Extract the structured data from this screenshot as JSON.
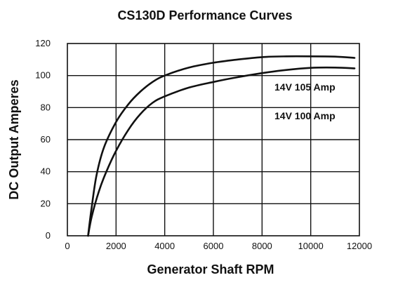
{
  "chart_data": {
    "type": "line",
    "title": "CS130D Performance Curves",
    "xlabel": "Generator Shaft RPM",
    "ylabel": "DC Output Amperes",
    "xlim": [
      0,
      12000
    ],
    "ylim": [
      0,
      120
    ],
    "xticks": [
      "0",
      "2000",
      "4000",
      "6000",
      "8000",
      "10000",
      "12000"
    ],
    "yticks": [
      "0",
      "20",
      "40",
      "60",
      "80",
      "100",
      "120"
    ],
    "grid": true,
    "series": [
      {
        "name": "14V 105 Amp",
        "x": [
          850,
          1000,
          1200,
          1500,
          2000,
          2500,
          3000,
          3500,
          4000,
          5000,
          6000,
          7000,
          8000,
          9000,
          10000,
          11000,
          11800
        ],
        "y": [
          0,
          18,
          38,
          55,
          71,
          82,
          90,
          96,
          100,
          105,
          108,
          110,
          111.5,
          112,
          112,
          111.8,
          111
        ]
      },
      {
        "name": "14V 100 Amp",
        "x": [
          850,
          1000,
          1300,
          1600,
          2000,
          2500,
          3000,
          3500,
          4000,
          5000,
          6000,
          7000,
          8000,
          9000,
          10000,
          11000,
          11800
        ],
        "y": [
          0,
          12,
          28,
          40,
          53,
          66,
          76,
          83,
          87,
          92.5,
          96,
          99,
          101.5,
          103.5,
          104.8,
          105,
          104.5
        ]
      }
    ]
  }
}
